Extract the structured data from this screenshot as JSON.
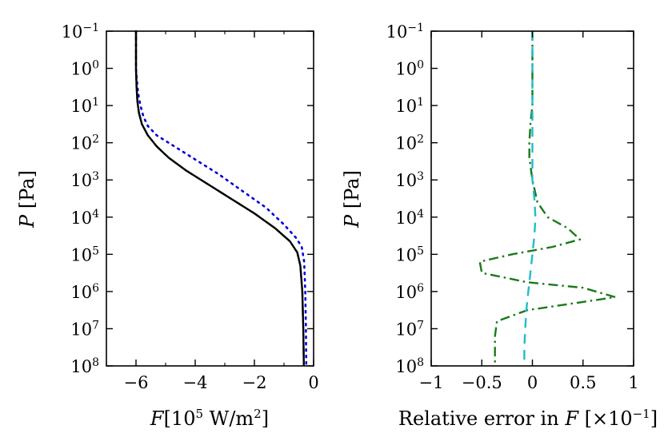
{
  "chart_data": [
    {
      "type": "line",
      "xlabel": "F [10^5 W/m^2]",
      "xlabel_parts": {
        "var": "F",
        "unit_open": "[10",
        "unit_exp": "5",
        "unit_mid": " W/m",
        "unit_exp2": "2",
        "unit_close": "]"
      },
      "ylabel": "P [Pa]",
      "ylabel_parts": {
        "var": "P",
        "unit": " [Pa]"
      },
      "xlim": [
        -7,
        0
      ],
      "ylim_log10": [
        -1,
        8
      ],
      "y_inverted": true,
      "y_scale": "log",
      "xticks": [
        -6,
        -4,
        -2,
        0
      ],
      "xtick_labels": [
        "−6",
        "−4",
        "−2",
        "0"
      ],
      "yticks_exp": [
        "−1",
        "0",
        "1",
        "2",
        "3",
        "4",
        "5",
        "6",
        "7",
        "8"
      ],
      "ytick_base": "10",
      "series": [
        {
          "name": "dotted",
          "color": "#0000dd",
          "style": "dotted",
          "points": [
            [
              -6.0,
              -1
            ],
            [
              -6.0,
              0
            ],
            [
              -5.95,
              0.5
            ],
            [
              -5.9,
              0.8
            ],
            [
              -5.85,
              1.0
            ],
            [
              -5.75,
              1.3
            ],
            [
              -5.6,
              1.55
            ],
            [
              -5.3,
              1.8
            ],
            [
              -4.7,
              2.1
            ],
            [
              -4.0,
              2.45
            ],
            [
              -3.2,
              2.85
            ],
            [
              -2.4,
              3.3
            ],
            [
              -1.6,
              3.75
            ],
            [
              -1.0,
              4.2
            ],
            [
              -0.6,
              4.55
            ],
            [
              -0.4,
              4.8
            ],
            [
              -0.32,
              5.2
            ],
            [
              -0.28,
              6.0
            ],
            [
              -0.26,
              7.0
            ],
            [
              -0.25,
              8.0
            ]
          ]
        },
        {
          "name": "dash-dot",
          "color": "#1a7a1a",
          "style": "dashdot",
          "points": [
            [
              -6.0,
              -1
            ],
            [
              -6.0,
              0
            ],
            [
              -5.98,
              0.5
            ],
            [
              -5.95,
              0.9
            ],
            [
              -5.9,
              1.2
            ],
            [
              -5.8,
              1.5
            ],
            [
              -5.6,
              1.8
            ],
            [
              -5.3,
              2.1
            ],
            [
              -4.9,
              2.4
            ],
            [
              -4.3,
              2.75
            ],
            [
              -3.6,
              3.1
            ],
            [
              -2.8,
              3.5
            ],
            [
              -2.0,
              3.9
            ],
            [
              -1.3,
              4.3
            ],
            [
              -0.8,
              4.65
            ],
            [
              -0.55,
              4.95
            ],
            [
              -0.45,
              5.3
            ],
            [
              -0.38,
              6.0
            ],
            [
              -0.35,
              7.0
            ],
            [
              -0.33,
              8.0
            ]
          ]
        },
        {
          "name": "solid",
          "color": "#000000",
          "style": "solid",
          "points": [
            [
              -6.0,
              -1
            ],
            [
              -6.0,
              0
            ],
            [
              -5.98,
              0.5
            ],
            [
              -5.95,
              0.9
            ],
            [
              -5.9,
              1.2
            ],
            [
              -5.8,
              1.5
            ],
            [
              -5.6,
              1.8
            ],
            [
              -5.3,
              2.1
            ],
            [
              -4.9,
              2.4
            ],
            [
              -4.3,
              2.75
            ],
            [
              -3.6,
              3.1
            ],
            [
              -2.8,
              3.5
            ],
            [
              -2.0,
              3.9
            ],
            [
              -1.3,
              4.3
            ],
            [
              -0.8,
              4.65
            ],
            [
              -0.55,
              4.95
            ],
            [
              -0.45,
              5.3
            ],
            [
              -0.38,
              6.0
            ],
            [
              -0.35,
              7.0
            ],
            [
              -0.33,
              8.0
            ]
          ]
        }
      ]
    },
    {
      "type": "line",
      "xlabel": "Relative error in F [×10^−1]",
      "xlabel_parts": {
        "pre": "Relative error in ",
        "var": "F",
        "unit_open": " [×10",
        "unit_exp": "−1",
        "unit_close": "]"
      },
      "ylabel": "P [Pa]",
      "ylabel_parts": {
        "var": "P",
        "unit": " [Pa]"
      },
      "xlim": [
        -1,
        1
      ],
      "ylim_log10": [
        -1,
        8
      ],
      "y_inverted": true,
      "y_scale": "log",
      "xticks": [
        -1,
        -0.5,
        0,
        0.5,
        1
      ],
      "xtick_labels": [
        "−1",
        "−0.5",
        "0",
        "0.5",
        "1"
      ],
      "yticks_exp": [
        "−1",
        "0",
        "1",
        "2",
        "3",
        "4",
        "5",
        "6",
        "7",
        "8"
      ],
      "ytick_base": "10",
      "series": [
        {
          "name": "dash-dot",
          "color": "#1a7a1a",
          "style": "dashdot",
          "points": [
            [
              0.0,
              -1
            ],
            [
              0.0,
              1.0
            ],
            [
              -0.02,
              1.5
            ],
            [
              -0.03,
              2.0
            ],
            [
              -0.03,
              2.4
            ],
            [
              0.0,
              3.0
            ],
            [
              0.05,
              3.6
            ],
            [
              0.15,
              4.0
            ],
            [
              0.35,
              4.3
            ],
            [
              0.47,
              4.6
            ],
            [
              0.2,
              4.8
            ],
            [
              -0.2,
              5.0
            ],
            [
              -0.52,
              5.2
            ],
            [
              -0.5,
              5.5
            ],
            [
              -0.05,
              5.75
            ],
            [
              0.5,
              5.9
            ],
            [
              0.82,
              6.15
            ],
            [
              0.45,
              6.3
            ],
            [
              -0.05,
              6.5
            ],
            [
              -0.35,
              6.8
            ],
            [
              -0.37,
              7.2
            ],
            [
              -0.37,
              8.0
            ]
          ]
        },
        {
          "name": "dashed",
          "color": "#22bbcc",
          "style": "dashed",
          "points": [
            [
              0.0,
              -1
            ],
            [
              0.0,
              1.0
            ],
            [
              0.0,
              2.0
            ],
            [
              0.0,
              3.0
            ],
            [
              0.02,
              3.5
            ],
            [
              0.03,
              4.0
            ],
            [
              0.02,
              4.5
            ],
            [
              0.0,
              5.0
            ],
            [
              -0.02,
              5.5
            ],
            [
              -0.04,
              6.0
            ],
            [
              -0.06,
              6.5
            ],
            [
              -0.07,
              7.0
            ],
            [
              -0.08,
              7.5
            ],
            [
              -0.08,
              8.0
            ]
          ]
        }
      ]
    }
  ]
}
